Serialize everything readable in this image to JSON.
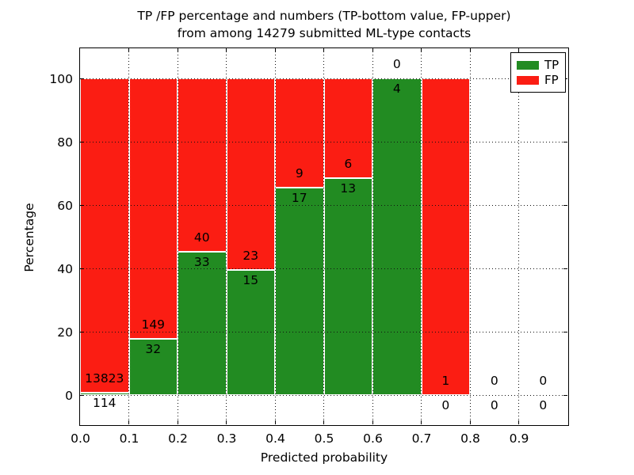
{
  "title_line1": "TP /FP percentage and numbers (TP-bottom value, FP-upper)",
  "title_line2": "from among 14279 submitted ML-type contacts",
  "axes": {
    "xlabel": "Predicted probability",
    "ylabel": "Percentage"
  },
  "legend": {
    "items": [
      {
        "label": "TP",
        "color": "#228b22"
      },
      {
        "label": "FP",
        "color": "#fb1d13"
      }
    ]
  },
  "chart_data": {
    "type": "bar",
    "stacked": true,
    "normalization": "each bin scaled to 100% (green = TP share, red = FP share)",
    "title": "TP /FP percentage and numbers (TP-bottom value, FP-upper) from among 14279 submitted ML-type contacts",
    "total_contacts": 14279,
    "xlabel": "Predicted probability",
    "ylabel": "Percentage",
    "bin_edges": [
      0.0,
      0.1,
      0.2,
      0.3,
      0.4,
      0.5,
      0.6,
      0.7,
      0.8,
      0.9,
      1.0
    ],
    "categories": [
      "0.0-0.1",
      "0.1-0.2",
      "0.2-0.3",
      "0.3-0.4",
      "0.4-0.5",
      "0.5-0.6",
      "0.6-0.7",
      "0.7-0.8",
      "0.8-0.9",
      "0.9-1.0"
    ],
    "series": [
      {
        "name": "TP",
        "color": "#228b22",
        "counts": [
          114,
          32,
          33,
          15,
          17,
          13,
          4,
          0,
          0,
          0
        ]
      },
      {
        "name": "FP",
        "color": "#fb1d13",
        "counts": [
          13823,
          149,
          40,
          23,
          9,
          6,
          0,
          1,
          0,
          0
        ]
      }
    ],
    "tp_percent_of_bin": [
      0.82,
      17.68,
      45.21,
      39.47,
      65.38,
      68.42,
      100.0,
      0.0,
      null,
      null
    ],
    "xticks": [
      "0.0",
      "0.1",
      "0.2",
      "0.3",
      "0.4",
      "0.5",
      "0.6",
      "0.7",
      "0.8",
      "0.9"
    ],
    "yticks": [
      0,
      20,
      40,
      60,
      80,
      100
    ],
    "ylim": [
      -9.5,
      110
    ],
    "grid": "dotted, both axes, drawn over bars",
    "legend_position": "upper right",
    "bar_edge_color": "#ffffff"
  }
}
